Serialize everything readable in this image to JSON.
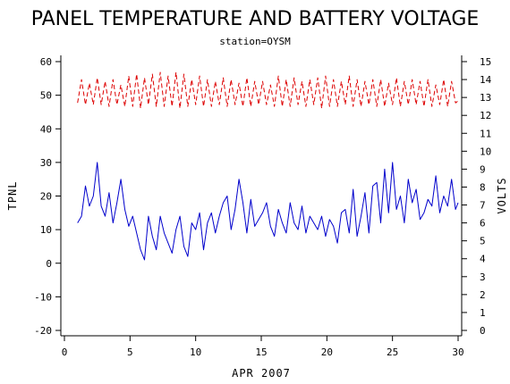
{
  "chart_data": {
    "type": "line",
    "title": "PANEL TEMPERATURE AND BATTERY VOLTAGE",
    "subtitle": "station=OYSM",
    "xlabel": "APR 2007",
    "ylabel_left": "TPNL",
    "ylabel_right": "VOLTS",
    "xlim": [
      0,
      30
    ],
    "ylim_left": [
      -20,
      60
    ],
    "ylim_right": [
      0,
      15
    ],
    "x_ticks": [
      0,
      5,
      10,
      15,
      20,
      25,
      30
    ],
    "y_left_ticks": [
      -20,
      -10,
      0,
      10,
      20,
      30,
      40,
      50,
      60
    ],
    "y_right_ticks": [
      0,
      1,
      2,
      3,
      4,
      5,
      6,
      7,
      8,
      9,
      10,
      11,
      12,
      13,
      14,
      15
    ],
    "grid": false,
    "colors": {
      "temperature": "#0000cc",
      "voltage": "#dd0000"
    },
    "series": [
      {
        "axis": "left",
        "color": "#0000cc",
        "x": [
          1.0,
          1.3,
          1.6,
          1.9,
          2.2,
          2.5,
          2.8,
          3.1,
          3.4,
          3.7,
          4.0,
          4.3,
          4.6,
          4.9,
          5.2,
          5.5,
          5.8,
          6.1,
          6.4,
          6.7,
          7.0,
          7.3,
          7.6,
          7.9,
          8.2,
          8.5,
          8.8,
          9.1,
          9.4,
          9.7,
          10.0,
          10.3,
          10.6,
          10.9,
          11.2,
          11.5,
          11.8,
          12.1,
          12.4,
          12.7,
          13.0,
          13.3,
          13.6,
          13.9,
          14.2,
          14.5,
          14.8,
          15.1,
          15.4,
          15.7,
          16.0,
          16.3,
          16.6,
          16.9,
          17.2,
          17.5,
          17.8,
          18.1,
          18.4,
          18.7,
          19.0,
          19.3,
          19.6,
          19.9,
          20.2,
          20.5,
          20.8,
          21.1,
          21.4,
          21.7,
          22.0,
          22.3,
          22.6,
          22.9,
          23.2,
          23.5,
          23.8,
          24.1,
          24.4,
          24.7,
          25.0,
          25.3,
          25.6,
          25.9,
          26.2,
          26.5,
          26.8,
          27.1,
          27.4,
          27.7,
          28.0,
          28.3,
          28.6,
          28.9,
          29.2,
          29.5,
          29.8,
          30.0
        ],
        "values": [
          12,
          14,
          23,
          17,
          20,
          30,
          17,
          14,
          21,
          12,
          18,
          25,
          16,
          11,
          14,
          9,
          4,
          1,
          14,
          8,
          4,
          14,
          9,
          6,
          3,
          10,
          14,
          5,
          2,
          12,
          10,
          15,
          4,
          12,
          15,
          9,
          14,
          18,
          20,
          10,
          16,
          25,
          18,
          9,
          19,
          11,
          13,
          15,
          18,
          11,
          8,
          16,
          12,
          9,
          18,
          12,
          10,
          17,
          9,
          14,
          12,
          10,
          14,
          8,
          13,
          11,
          6,
          15,
          16,
          9,
          22,
          8,
          14,
          21,
          9,
          23,
          24,
          12,
          28,
          15,
          30,
          16,
          20,
          12,
          25,
          18,
          22,
          13,
          15,
          19,
          17,
          26,
          15,
          20,
          17,
          25,
          16,
          18
        ]
      },
      {
        "axis": "right",
        "color": "#dd0000",
        "x": [
          1.0,
          1.3,
          1.6,
          1.9,
          2.2,
          2.5,
          2.8,
          3.1,
          3.4,
          3.7,
          4.0,
          4.3,
          4.6,
          4.9,
          5.2,
          5.5,
          5.8,
          6.1,
          6.4,
          6.7,
          7.0,
          7.3,
          7.6,
          7.9,
          8.2,
          8.5,
          8.8,
          9.1,
          9.4,
          9.7,
          10.0,
          10.3,
          10.6,
          10.9,
          11.2,
          11.5,
          11.8,
          12.1,
          12.4,
          12.7,
          13.0,
          13.3,
          13.6,
          13.9,
          14.2,
          14.5,
          14.8,
          15.1,
          15.4,
          15.7,
          16.0,
          16.3,
          16.6,
          16.9,
          17.2,
          17.5,
          17.8,
          18.1,
          18.4,
          18.7,
          19.0,
          19.3,
          19.6,
          19.9,
          20.2,
          20.5,
          20.8,
          21.1,
          21.4,
          21.7,
          22.0,
          22.3,
          22.6,
          22.9,
          23.2,
          23.5,
          23.8,
          24.1,
          24.4,
          24.7,
          25.0,
          25.3,
          25.6,
          25.9,
          26.2,
          26.5,
          26.8,
          27.1,
          27.4,
          27.7,
          28.0,
          28.3,
          28.6,
          28.9,
          29.2,
          29.5,
          29.8,
          30.0
        ],
        "values": [
          12.7,
          14.0,
          12.6,
          13.8,
          12.6,
          14.1,
          12.6,
          13.9,
          12.5,
          14.0,
          12.6,
          13.7,
          12.5,
          14.2,
          12.5,
          14.3,
          12.4,
          14.1,
          12.6,
          14.3,
          12.5,
          14.4,
          12.5,
          14.2,
          12.5,
          14.4,
          12.4,
          14.3,
          12.5,
          14.0,
          12.6,
          14.2,
          12.5,
          14.0,
          12.5,
          13.9,
          12.6,
          14.1,
          12.5,
          14.0,
          12.6,
          13.8,
          12.5,
          14.1,
          12.5,
          13.9,
          12.6,
          13.9,
          12.6,
          13.7,
          12.5,
          14.2,
          12.5,
          14.0,
          12.5,
          14.1,
          12.6,
          13.9,
          12.5,
          14.0,
          12.6,
          14.1,
          12.4,
          14.2,
          12.5,
          14.0,
          12.5,
          13.9,
          12.6,
          14.2,
          12.5,
          14.0,
          12.5,
          13.9,
          12.6,
          14.0,
          12.5,
          14.0,
          12.5,
          13.8,
          12.6,
          14.1,
          12.5,
          13.9,
          12.6,
          14.0,
          12.6,
          13.9,
          12.5,
          14.0,
          12.5,
          13.7,
          12.6,
          14.0,
          12.5,
          13.9,
          12.7,
          12.8
        ]
      }
    ]
  }
}
